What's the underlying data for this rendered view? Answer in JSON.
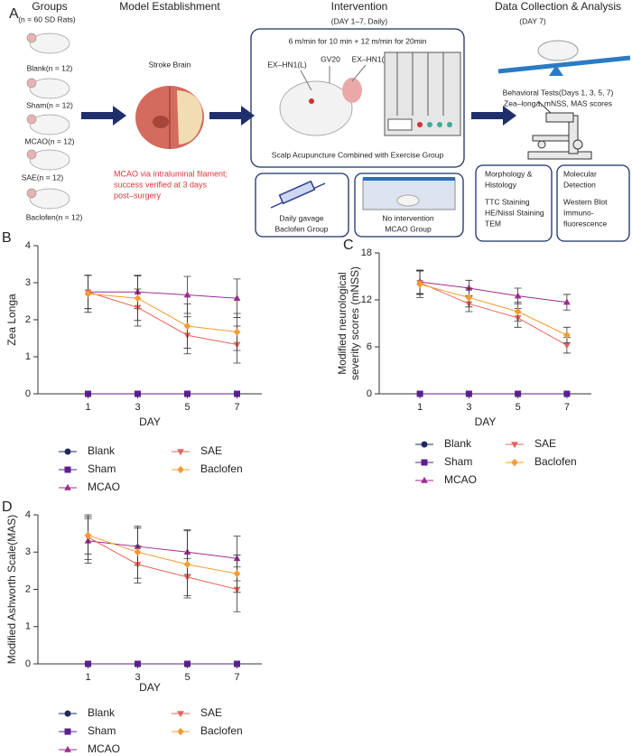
{
  "panel_a": {
    "label": "A",
    "groups": {
      "title": "Groups",
      "subtitle": "(n = 60 SD Rats)",
      "items": [
        "Blank(n = 12)",
        "Sham(n = 12)",
        "MCAO(n = 12)",
        "SAE(n = 12)",
        "Baclofen(n = 12)"
      ]
    },
    "model": {
      "title": "Model Establishment",
      "caption": "Stroke Brain",
      "note": [
        "MCAO via intraluminal filament;",
        "success verified at 3 days",
        "post–surgery"
      ]
    },
    "intervention": {
      "title": "Intervention",
      "subtitle": "(DAY 1–7, Daily)",
      "protocol": "6 m/min for 10 min + 12 m/min for 20min",
      "points": [
        "EX–HN1(L)",
        "GV20",
        "EX–HN1(R)"
      ],
      "caption": "Scalp Acupuncture Combined with Exercise Group",
      "boxes": [
        [
          "Daily gavage",
          "Baclofen Group"
        ],
        [
          "No intervention",
          "MCAO Group"
        ]
      ]
    },
    "analysis": {
      "title": "Data Collection & Analysis",
      "subtitle": "(DAY 7)",
      "behavior": [
        "Behavioral Tests(Days 1, 3, 5, 7)",
        "Zea–longa, mNSS, MAS scores"
      ],
      "boxes": [
        {
          "heading": [
            "Morphology &",
            "Histology"
          ],
          "items": [
            "TTC Staining",
            "HE/Nissl Staining",
            "TEM"
          ]
        },
        {
          "heading": [
            "Molecular",
            "Detection"
          ],
          "items": [
            "Western Blot",
            "Immuno-",
            "fluorescence"
          ]
        }
      ]
    }
  },
  "chart_data": [
    {
      "type": "line",
      "panel": "B",
      "xlabel": "DAY",
      "ylabel": [
        "Zea Longa"
      ],
      "x": [
        1,
        3,
        5,
        7
      ],
      "xlim": [
        0,
        8
      ],
      "xticks": [
        1,
        3,
        5,
        7
      ],
      "ylim": [
        0,
        4
      ],
      "yticks": [
        0,
        1,
        2,
        3,
        4
      ],
      "legend": "bottom",
      "series": [
        {
          "name": "Blank",
          "color": "#1f2a5c",
          "marker": "circle",
          "values": [
            0,
            0,
            0,
            0
          ],
          "errors": [
            0,
            0,
            0,
            0
          ]
        },
        {
          "name": "Sham",
          "color": "#5b1f8f",
          "marker": "square",
          "values": [
            0,
            0,
            0,
            0
          ],
          "errors": [
            0,
            0,
            0,
            0
          ]
        },
        {
          "name": "MCAO",
          "color": "#9b2d8f",
          "marker": "triangle",
          "values": [
            2.75,
            2.75,
            2.67,
            2.58
          ],
          "errors": [
            0.45,
            0.45,
            0.5,
            0.52
          ]
        },
        {
          "name": "SAE",
          "color": "#e5645a",
          "marker": "triangle-down",
          "values": [
            2.75,
            2.33,
            1.58,
            1.33
          ],
          "errors": [
            0.45,
            0.5,
            0.5,
            0.5
          ]
        },
        {
          "name": "Baclofen",
          "color": "#f39c34",
          "marker": "diamond",
          "values": [
            2.7,
            2.58,
            1.83,
            1.67
          ],
          "errors": [
            0.5,
            0.6,
            0.6,
            0.5
          ]
        }
      ]
    },
    {
      "type": "line",
      "panel": "C",
      "xlabel": "DAY",
      "ylabel": [
        "Modified neurological",
        "severity scores (mNSS)"
      ],
      "x": [
        1,
        3,
        5,
        7
      ],
      "xlim": [
        0,
        8
      ],
      "xticks": [
        1,
        3,
        5,
        7
      ],
      "ylim": [
        0,
        18
      ],
      "yticks": [
        0,
        6,
        12,
        18
      ],
      "legend": "bottom",
      "series": [
        {
          "name": "Blank",
          "color": "#1f2a5c",
          "marker": "circle",
          "values": [
            0,
            0,
            0,
            0
          ],
          "errors": [
            0,
            0,
            0,
            0
          ]
        },
        {
          "name": "Sham",
          "color": "#5b1f8f",
          "marker": "square",
          "values": [
            0,
            0,
            0,
            0
          ],
          "errors": [
            0,
            0,
            0,
            0
          ]
        },
        {
          "name": "MCAO",
          "color": "#9b2d8f",
          "marker": "triangle",
          "values": [
            14.3,
            13.5,
            12.5,
            11.7
          ],
          "errors": [
            1.5,
            1.0,
            1.0,
            1.0
          ]
        },
        {
          "name": "SAE",
          "color": "#e5645a",
          "marker": "triangle-down",
          "values": [
            14.2,
            11.5,
            9.7,
            6.2
          ],
          "errors": [
            1.5,
            1.0,
            1.2,
            1.0
          ]
        },
        {
          "name": "Baclofen",
          "color": "#f39c34",
          "marker": "diamond",
          "values": [
            14.0,
            12.3,
            10.5,
            7.5
          ],
          "errors": [
            1.7,
            1.2,
            1.2,
            1.0
          ]
        }
      ]
    },
    {
      "type": "line",
      "panel": "D",
      "xlabel": "DAY",
      "ylabel": [
        "Modified Ashworth Scale(MAS)"
      ],
      "x": [
        1,
        3,
        5,
        7
      ],
      "xlim": [
        0,
        8
      ],
      "xticks": [
        1,
        3,
        5,
        7
      ],
      "ylim": [
        0,
        4
      ],
      "yticks": [
        0,
        1,
        2,
        3,
        4
      ],
      "legend": "bottom",
      "series": [
        {
          "name": "Blank",
          "color": "#1f2a5c",
          "marker": "circle",
          "values": [
            0,
            0,
            0,
            0
          ],
          "errors": [
            0,
            0,
            0,
            0
          ]
        },
        {
          "name": "Sham",
          "color": "#5b1f8f",
          "marker": "square",
          "values": [
            0,
            0,
            0,
            0
          ],
          "errors": [
            0,
            0,
            0,
            0
          ]
        },
        {
          "name": "MCAO",
          "color": "#9b2d8f",
          "marker": "triangle",
          "values": [
            3.3,
            3.15,
            3.0,
            2.83
          ],
          "errors": [
            0.6,
            0.5,
            0.6,
            0.6
          ]
        },
        {
          "name": "SAE",
          "color": "#e5645a",
          "marker": "triangle-down",
          "values": [
            3.4,
            2.67,
            2.33,
            2.0
          ],
          "errors": [
            0.6,
            0.5,
            0.5,
            0.6
          ]
        },
        {
          "name": "Baclofen",
          "color": "#f39c34",
          "marker": "diamond",
          "values": [
            3.45,
            3.0,
            2.67,
            2.42
          ],
          "errors": [
            0.5,
            0.7,
            0.9,
            0.5
          ]
        }
      ]
    }
  ]
}
